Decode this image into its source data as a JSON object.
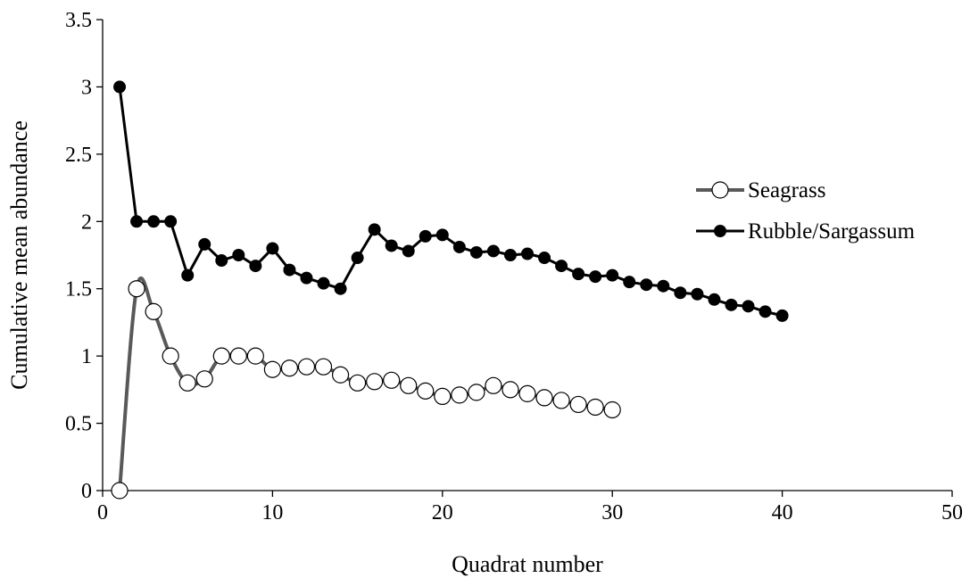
{
  "chart_data": {
    "type": "line",
    "title": "",
    "xlabel": "Quadrat number",
    "ylabel": "Cumulative mean abundance",
    "xlim": [
      0,
      50
    ],
    "ylim": [
      0,
      3.5
    ],
    "x_ticks": [
      0,
      10,
      20,
      30,
      40,
      50
    ],
    "y_ticks": [
      0,
      0.5,
      1,
      1.5,
      2,
      2.5,
      3,
      3.5
    ],
    "x_tick_labels": [
      "0",
      "10",
      "20",
      "30",
      "40",
      "50"
    ],
    "y_tick_labels": [
      "0",
      "0.5",
      "1",
      "1.5",
      "2",
      "2.5",
      "3",
      "3.5"
    ],
    "grid": false,
    "legend_position": "right",
    "series": [
      {
        "name": "Seagrass",
        "line_color": "#595959",
        "marker": "open-circle",
        "smooth": true,
        "x": [
          1,
          2,
          3,
          4,
          5,
          6,
          7,
          8,
          9,
          10,
          11,
          12,
          13,
          14,
          15,
          16,
          17,
          18,
          19,
          20,
          21,
          22,
          23,
          24,
          25,
          26,
          27,
          28,
          29,
          30
        ],
        "values": [
          0,
          1.5,
          1.33,
          1.0,
          0.8,
          0.83,
          1.0,
          1.0,
          1.0,
          0.9,
          0.91,
          0.92,
          0.92,
          0.86,
          0.8,
          0.81,
          0.82,
          0.78,
          0.74,
          0.7,
          0.71,
          0.73,
          0.78,
          0.75,
          0.72,
          0.69,
          0.67,
          0.64,
          0.62,
          0.6
        ]
      },
      {
        "name": "Rubble/Sargassum",
        "line_color": "#000000",
        "marker": "filled-circle",
        "smooth": false,
        "x": [
          1,
          2,
          3,
          4,
          5,
          6,
          7,
          8,
          9,
          10,
          11,
          12,
          13,
          14,
          15,
          16,
          17,
          18,
          19,
          20,
          21,
          22,
          23,
          24,
          25,
          26,
          27,
          28,
          29,
          30,
          31,
          32,
          33,
          34,
          35,
          36,
          37,
          38,
          39,
          40
        ],
        "values": [
          3.0,
          2.0,
          2.0,
          2.0,
          1.6,
          1.83,
          1.71,
          1.75,
          1.67,
          1.8,
          1.64,
          1.58,
          1.54,
          1.5,
          1.73,
          1.94,
          1.82,
          1.78,
          1.89,
          1.9,
          1.81,
          1.77,
          1.78,
          1.75,
          1.76,
          1.73,
          1.67,
          1.61,
          1.59,
          1.6,
          1.55,
          1.53,
          1.52,
          1.47,
          1.46,
          1.42,
          1.38,
          1.37,
          1.33,
          1.3
        ]
      }
    ]
  }
}
